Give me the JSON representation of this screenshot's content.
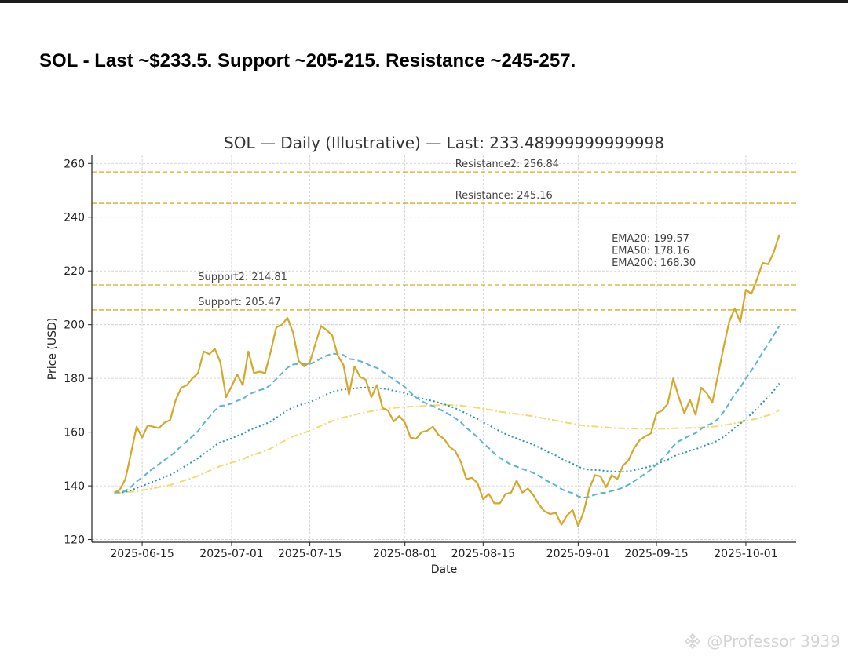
{
  "headline": "SOL - Last ~$233.5. Support ~205-215. Resistance ~245-257.",
  "watermark": "@Professor 3939",
  "watermark_icon": "binance-logo-icon",
  "colors": {
    "price": "#D4A82A",
    "ema20": "#5AB4D6",
    "ema50": "#2A95A6",
    "ema200": "#F3DA6E",
    "level": "#D9AC1E",
    "grid": "#cccccc"
  },
  "chart_data": {
    "type": "line",
    "title": "SOL — Daily (Illustrative) — Last: 233.48999999999998",
    "xlabel": "Date",
    "ylabel": "Price (USD)",
    "ylim": [
      119,
      263
    ],
    "xlim": [
      "2025-06-06",
      "2025-10-10"
    ],
    "grid": true,
    "y_ticks": [
      120,
      140,
      160,
      180,
      200,
      220,
      240,
      260
    ],
    "x_ticks": [
      "2025-06-15",
      "2025-07-01",
      "2025-07-15",
      "2025-08-01",
      "2025-08-15",
      "2025-09-01",
      "2025-09-15",
      "2025-10-01"
    ],
    "start_date": "2025-06-10",
    "series": [
      {
        "role": "price",
        "values": [
          137.5,
          138.5,
          142.5,
          152,
          162,
          158,
          162.5,
          162,
          161.5,
          163.5,
          164.5,
          172,
          176.5,
          177.5,
          180,
          182,
          190,
          189,
          191,
          186,
          173,
          177,
          181.5,
          177.5,
          190,
          182,
          182.5,
          182,
          190,
          199,
          200,
          202.5,
          197,
          186.5,
          184.5,
          186,
          193,
          199.5,
          198,
          196,
          188.5,
          185,
          174,
          184.5,
          180.5,
          179.5,
          173,
          177.5,
          169,
          168,
          164,
          166,
          163.5,
          158,
          157.5,
          160,
          160.5,
          162,
          159,
          157.5,
          154.5,
          153,
          149,
          142.5,
          143,
          141,
          135,
          137,
          133.5,
          133.5,
          137,
          137.5,
          142,
          137.5,
          139,
          136.5,
          133,
          130.5,
          129.5,
          130,
          125.5,
          129,
          131,
          125,
          130.5,
          139,
          144,
          143.5,
          139.5,
          144,
          142.5,
          147.5,
          149.5,
          154,
          157,
          158.5,
          159.5,
          167,
          168,
          170.5,
          180,
          173,
          167,
          172,
          166.5,
          176.5,
          174.5,
          171,
          181,
          191.5,
          201,
          206,
          201,
          213,
          211.5,
          217,
          223,
          222.5,
          227,
          233.5
        ]
      },
      {
        "role": "ema20",
        "values": [
          137.5,
          137.6,
          138.1,
          139.6,
          141.6,
          143.1,
          144.9,
          146.6,
          148.1,
          149.6,
          151.0,
          152.8,
          154.9,
          156.6,
          158.5,
          160.4,
          163.2,
          165.6,
          168.1,
          169.8,
          170.0,
          170.7,
          171.7,
          172.3,
          174.0,
          174.8,
          175.6,
          176.2,
          177.6,
          179.8,
          181.9,
          184.0,
          185.2,
          185.4,
          185.3,
          185.4,
          186.2,
          187.5,
          188.5,
          189.2,
          189.1,
          188.7,
          187.3,
          187.0,
          186.4,
          185.7,
          184.5,
          183.9,
          182.5,
          181.1,
          179.5,
          178.2,
          176.8,
          174.7,
          172.9,
          171.6,
          170.5,
          169.7,
          168.7,
          167.7,
          166.5,
          165.2,
          163.7,
          161.6,
          159.9,
          158.1,
          155.9,
          154.1,
          152.1,
          150.4,
          149.1,
          147.9,
          147.2,
          146.3,
          145.6,
          144.8,
          143.7,
          142.4,
          141.2,
          140.2,
          138.8,
          137.9,
          137.3,
          136.1,
          135.6,
          136.0,
          136.7,
          137.3,
          137.5,
          138.1,
          138.6,
          139.4,
          140.4,
          141.7,
          143.1,
          144.6,
          146.0,
          148.0,
          150.0,
          152.1,
          154.8,
          156.6,
          157.6,
          158.9,
          159.6,
          161.2,
          162.5,
          163.3,
          164.9,
          167.5,
          170.7,
          174.1,
          176.6,
          180.0,
          182.9,
          186.2,
          189.7,
          192.8,
          196.1,
          199.57
        ]
      },
      {
        "role": "ema50",
        "values": [
          137.5,
          137.5,
          137.7,
          138.3,
          139.2,
          139.9,
          140.8,
          141.6,
          142.4,
          143.3,
          144.1,
          145.2,
          146.5,
          147.7,
          149.0,
          150.3,
          151.9,
          153.4,
          155.0,
          156.2,
          156.9,
          157.7,
          158.6,
          159.4,
          160.6,
          161.4,
          162.2,
          163.0,
          164.0,
          165.4,
          166.8,
          168.2,
          169.3,
          170.0,
          170.6,
          171.2,
          172.1,
          173.1,
          174.1,
          175.0,
          175.5,
          175.9,
          175.9,
          176.3,
          176.5,
          176.6,
          176.5,
          176.5,
          176.2,
          175.9,
          175.4,
          175.0,
          174.5,
          173.8,
          173.1,
          172.6,
          172.0,
          171.6,
          171.0,
          170.4,
          169.7,
          168.9,
          168.0,
          166.9,
          165.9,
          164.9,
          163.6,
          162.6,
          161.4,
          160.3,
          159.3,
          158.4,
          157.7,
          156.8,
          156.1,
          155.3,
          154.3,
          153.3,
          152.2,
          151.3,
          150.1,
          149.1,
          148.3,
          147.2,
          146.3,
          146.0,
          145.9,
          145.8,
          145.5,
          145.4,
          145.3,
          145.3,
          145.5,
          145.8,
          146.3,
          146.8,
          147.3,
          148.1,
          148.9,
          149.7,
          150.9,
          151.8,
          152.3,
          153.1,
          153.6,
          154.5,
          155.3,
          155.9,
          156.9,
          158.2,
          159.8,
          161.6,
          163.1,
          165.0,
          166.8,
          168.8,
          171.0,
          173.1,
          175.4,
          178.16
        ]
      },
      {
        "role": "ema200",
        "values": [
          137.5,
          137.5,
          137.6,
          137.8,
          138.0,
          138.3,
          138.7,
          139.1,
          139.5,
          139.9,
          140.3,
          140.9,
          141.6,
          142.3,
          143.0,
          143.7,
          144.7,
          145.6,
          146.6,
          147.4,
          148.0,
          148.6,
          149.3,
          149.9,
          150.9,
          151.6,
          152.3,
          153.0,
          153.9,
          155.1,
          156.2,
          157.4,
          158.4,
          159.1,
          159.8,
          160.5,
          161.4,
          162.4,
          163.3,
          164.1,
          164.8,
          165.5,
          165.9,
          166.5,
          167.0,
          167.4,
          167.8,
          168.2,
          168.5,
          168.8,
          169.0,
          169.2,
          169.4,
          169.5,
          169.6,
          169.7,
          169.8,
          170.0,
          170.0,
          170.1,
          170.1,
          170.0,
          169.9,
          169.6,
          169.3,
          169.1,
          168.7,
          168.4,
          168.0,
          167.6,
          167.3,
          167.0,
          166.8,
          166.5,
          166.2,
          165.9,
          165.5,
          165.1,
          164.7,
          164.3,
          163.9,
          163.5,
          163.2,
          162.7,
          162.4,
          162.2,
          162.1,
          161.9,
          161.8,
          161.6,
          161.5,
          161.4,
          161.4,
          161.3,
          161.3,
          161.3,
          161.3,
          161.3,
          161.3,
          161.3,
          161.4,
          161.5,
          161.5,
          161.6,
          161.6,
          161.8,
          161.9,
          162.0,
          162.2,
          162.5,
          162.9,
          163.3,
          163.6,
          164.1,
          164.6,
          165.1,
          165.7,
          166.3,
          166.9,
          168.3
        ]
      }
    ],
    "levels": [
      {
        "label": "Resistance2: 256.84",
        "value": 256.84,
        "label_date": "2025-08-10"
      },
      {
        "label": "Resistance: 245.16",
        "value": 245.16,
        "label_date": "2025-08-10"
      },
      {
        "label": "Support2: 214.81",
        "value": 214.81,
        "label_date": "2025-06-25"
      },
      {
        "label": "Support: 205.47",
        "value": 205.47,
        "label_date": "2025-06-25"
      }
    ],
    "ema_annotation": [
      "EMA20: 199.57",
      "EMA50: 178.16",
      "EMA200: 168.30"
    ]
  }
}
